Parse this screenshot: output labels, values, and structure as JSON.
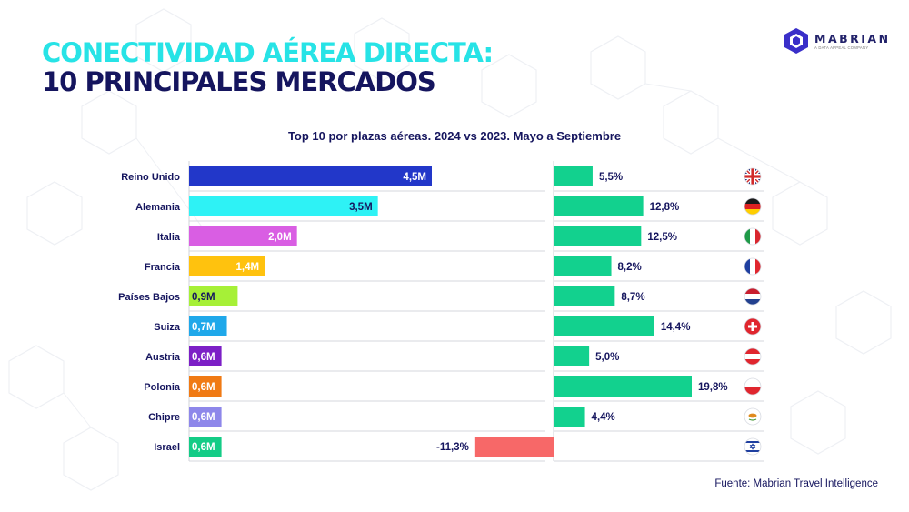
{
  "header": {
    "title_line1": "CONECTIVIDAD AÉREA DIRECTA:",
    "title_line2": "10 PRINCIPALES MERCADOS"
  },
  "logo": {
    "name": "MABRIAN",
    "tagline": "A DATA APPEAL COMPANY",
    "icon": "hexagon-logo-icon"
  },
  "source": "Fuente: Mabrian Travel Intelligence",
  "chart_data": {
    "type": "bar",
    "title": "Top 10 por plazas aéreas. 2024 vs 2023. Mayo a Septiembre",
    "categories": [
      "Reino Unido",
      "Alemania",
      "Italia",
      "Francia",
      "Países Bajos",
      "Suiza",
      "Austria",
      "Polonia",
      "Chipre",
      "Israel"
    ],
    "series": [
      {
        "values": [
          4.5,
          3.5,
          2.0,
          1.4,
          0.9,
          0.7,
          0.6,
          0.6,
          0.6,
          0.6
        ],
        "labels": [
          "4,5M",
          "3,5M",
          "2,0M",
          "1,4M",
          "0,9M",
          "0,7M",
          "0,6M",
          "0,6M",
          "0,6M",
          "0,6M"
        ],
        "colors": [
          "#2237c9",
          "#2ef2f5",
          "#d95ee3",
          "#ffc20e",
          "#a6f037",
          "#1fa8ea",
          "#7c1fc6",
          "#f07a14",
          "#8e87ea",
          "#14cc86"
        ]
      },
      {
        "values": [
          5.5,
          12.8,
          12.5,
          8.2,
          8.7,
          14.4,
          5.0,
          19.8,
          4.4,
          -11.3
        ],
        "labels": [
          "5,5%",
          "12,8%",
          "12,5%",
          "8,2%",
          "8,7%",
          "14,4%",
          "5,0%",
          "19,8%",
          "4,4%",
          "-11,3%"
        ],
        "positive_color": "#12d18e",
        "negative_color": "#f76868"
      }
    ],
    "flags": [
      "uk-flag-icon",
      "germany-flag-icon",
      "italy-flag-icon",
      "france-flag-icon",
      "netherlands-flag-icon",
      "switzerland-flag-icon",
      "austria-flag-icon",
      "poland-flag-icon",
      "cyprus-flag-icon",
      "israel-flag-icon"
    ]
  }
}
